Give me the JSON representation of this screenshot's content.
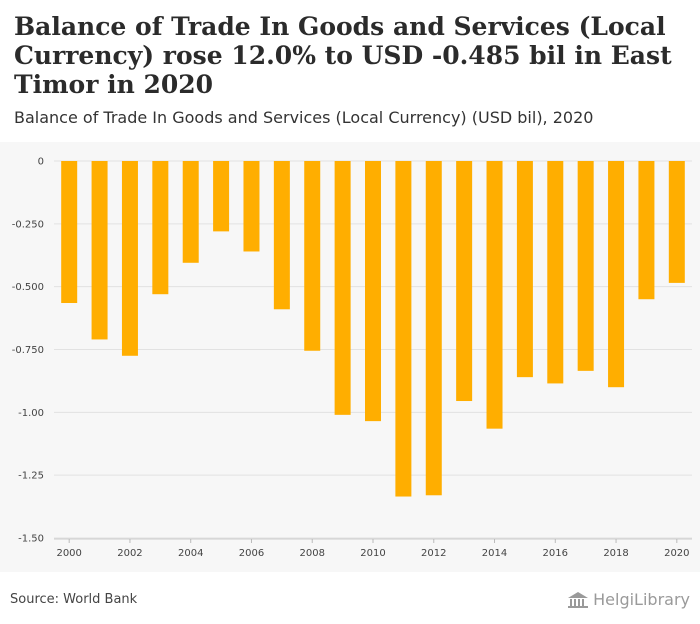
{
  "title": "Balance of Trade In Goods and Services (Local Currency) rose 12.0% to USD -0.485 bil in East Timor in 2020",
  "subtitle": "Balance of Trade In Goods and Services (Local Currency) (USD bil), 2020",
  "source": "Source: World Bank",
  "logo_text": "HelgiLibrary",
  "colors": {
    "bar": "#FFAE00",
    "grid": "#e2e2e2",
    "background": "#f7f7f7"
  },
  "chart_data": {
    "type": "bar",
    "categories": [
      "2000",
      "2001",
      "2002",
      "2003",
      "2004",
      "2005",
      "2006",
      "2007",
      "2008",
      "2009",
      "2010",
      "2011",
      "2012",
      "2013",
      "2014",
      "2015",
      "2016",
      "2017",
      "2018",
      "2019",
      "2020"
    ],
    "values": [
      -0.565,
      -0.71,
      -0.775,
      -0.53,
      -0.405,
      -0.28,
      -0.36,
      -0.59,
      -0.755,
      -1.01,
      -1.035,
      -1.335,
      -1.33,
      -0.955,
      -1.065,
      -0.86,
      -0.885,
      -0.835,
      -0.9,
      -0.55,
      -0.485
    ],
    "x_tick_labels": [
      "2000",
      "2002",
      "2004",
      "2006",
      "2008",
      "2010",
      "2012",
      "2014",
      "2016",
      "2018",
      "2020"
    ],
    "y_ticks": [
      0,
      -0.25,
      -0.5,
      -0.75,
      -1.0,
      -1.25,
      -1.5
    ],
    "y_tick_labels": [
      "0",
      "-0.250",
      "-0.500",
      "-0.750",
      "-1.00",
      "-1.25",
      "-1.50"
    ],
    "ylim": [
      -1.5,
      0
    ],
    "xlabel": "",
    "ylabel": "",
    "grid": true
  }
}
